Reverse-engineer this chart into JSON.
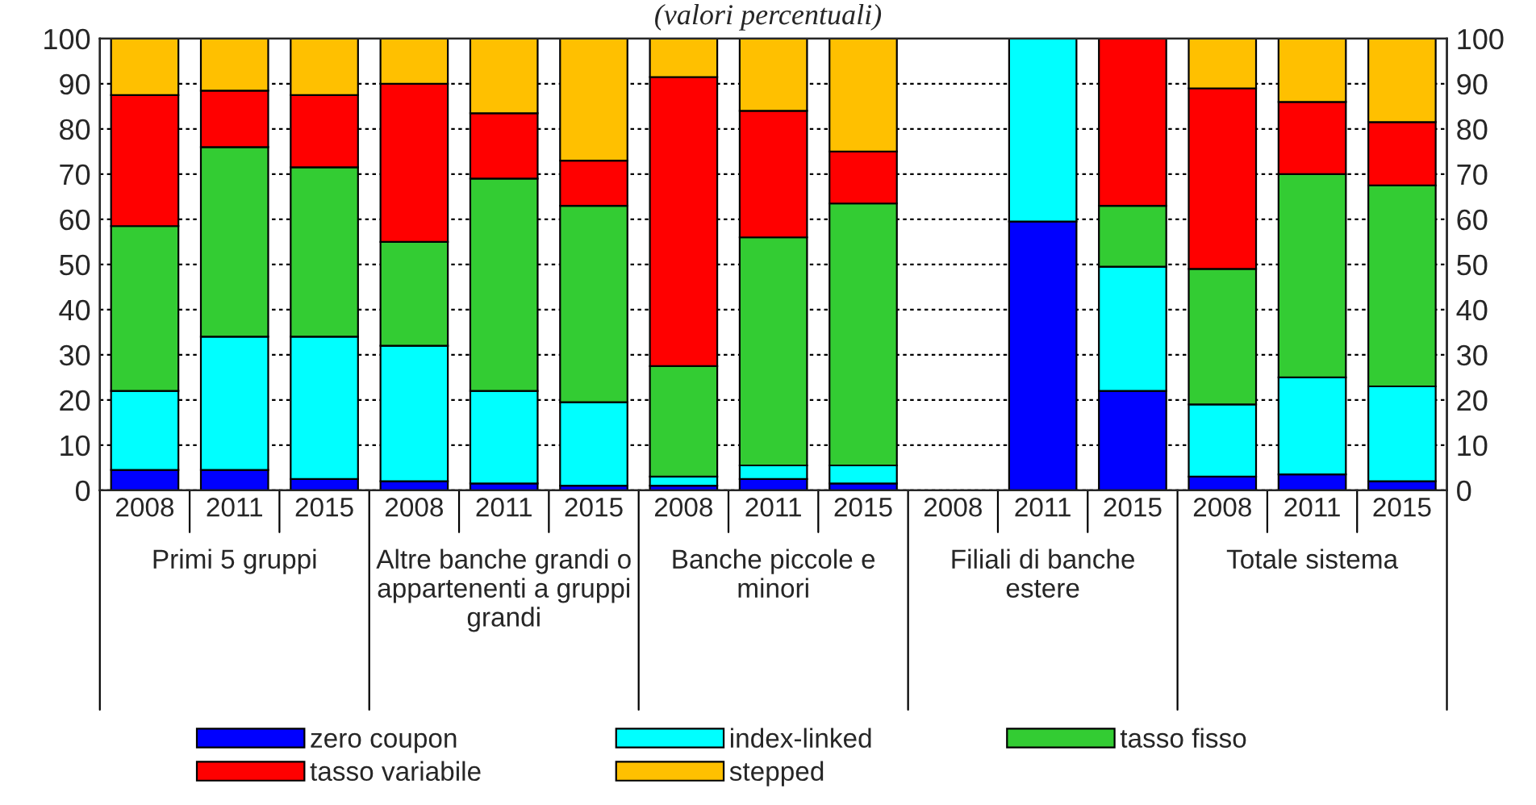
{
  "chart_data": {
    "type": "bar",
    "stacked": true,
    "title": "(valori percentuali)",
    "categories": [
      "2008",
      "2011",
      "2015",
      "2008",
      "2011",
      "2015",
      "2008",
      "2011",
      "2015",
      "2008",
      "2011",
      "2015",
      "2008",
      "2011",
      "2015"
    ],
    "annotations": [
      "Primi 5 gruppi",
      "Altre banche grandi o appartenenti a gruppi grandi",
      "Banche piccole e minori",
      "Filiali di banche estere",
      "Totale sistema"
    ],
    "series": [
      {
        "name": "zero coupon",
        "color": "#0000ff",
        "values": [
          4.5,
          4.5,
          2.5,
          2,
          1.5,
          1,
          1,
          2.5,
          1.5,
          null,
          59.5,
          22,
          3,
          3.5,
          2
        ]
      },
      {
        "name": "index-linked",
        "color": "#00ffff",
        "values": [
          17.5,
          29.5,
          31.5,
          30,
          20.5,
          18.5,
          2,
          3,
          4,
          null,
          40.5,
          27.5,
          16,
          21.5,
          21
        ]
      },
      {
        "name": "tasso fisso",
        "color": "#33cc33",
        "values": [
          36.5,
          42,
          37.5,
          23,
          47,
          43.5,
          24.5,
          50.5,
          58,
          null,
          0,
          13.5,
          30,
          45,
          44.5
        ]
      },
      {
        "name": "tasso variabile",
        "color": "#ff0000",
        "values": [
          29,
          12.5,
          16,
          35,
          14.5,
          10,
          64,
          28,
          11.5,
          null,
          0,
          37,
          40,
          16,
          14
        ]
      },
      {
        "name": "stepped",
        "color": "#ffc000",
        "values": [
          12.5,
          11.5,
          12.5,
          10,
          16.5,
          27,
          8.5,
          16,
          25,
          null,
          0,
          0,
          11,
          14,
          18.5
        ]
      }
    ],
    "ylim": [
      0,
      100
    ],
    "yticks": [
      0,
      10,
      20,
      30,
      40,
      50,
      60,
      70,
      80,
      90,
      100
    ],
    "y2lim": [
      0,
      100
    ],
    "y2ticks": [
      0,
      10,
      20,
      30,
      40,
      50,
      60,
      70,
      80,
      90,
      100
    ],
    "grid": "y",
    "legend": "bottom"
  }
}
